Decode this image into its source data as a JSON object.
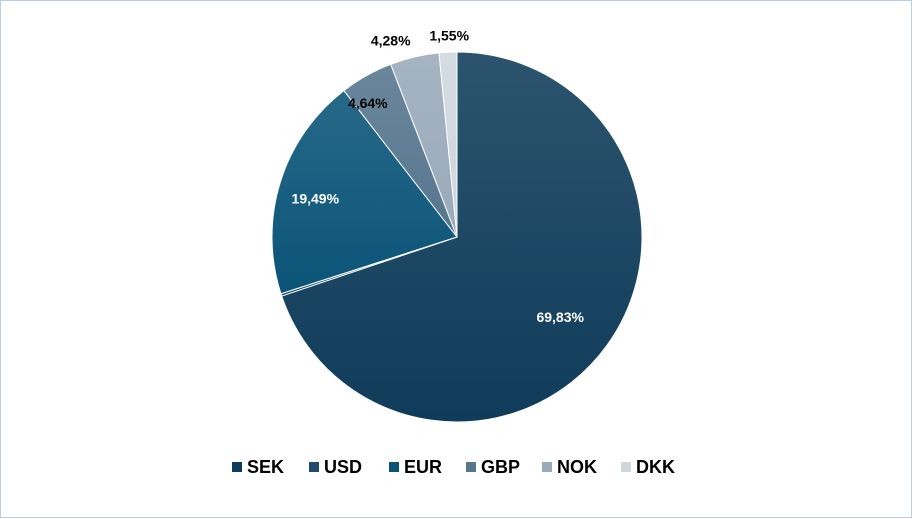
{
  "chart_data": {
    "type": "pie",
    "categories": [
      "SEK",
      "USD",
      "EUR",
      "GBP",
      "NOK",
      "DKK"
    ],
    "values": [
      69.83,
      0.21,
      19.49,
      4.64,
      4.28,
      1.55
    ],
    "data_labels": [
      "69,83%",
      "",
      "19,49%",
      "4,64%",
      "4,28%",
      "1,55%"
    ],
    "colors": [
      "#0f3c5a",
      "#1f4c6c",
      "#0a5478",
      "#56768e",
      "#99aabb",
      "#cfd6de"
    ],
    "label_colors": [
      "#ffffff",
      "#ffffff",
      "#ffffff",
      "#000000",
      "#000000",
      "#000000"
    ],
    "start_angle_deg": 0,
    "direction": "clockwise",
    "legend_position": "bottom"
  }
}
